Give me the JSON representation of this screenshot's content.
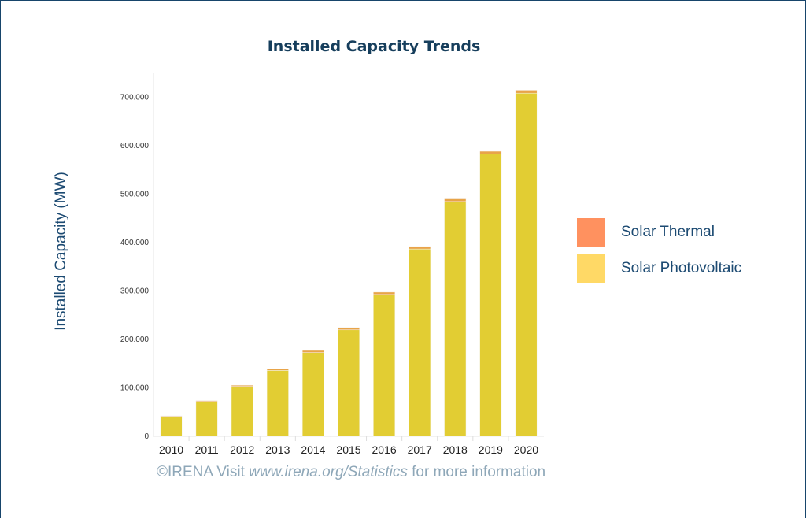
{
  "chart_data": {
    "type": "bar",
    "stacked": true,
    "title": "Installed Capacity Trends",
    "xlabel": "",
    "ylabel": "Installed Capacity (MW)",
    "categories": [
      "2010",
      "2011",
      "2012",
      "2013",
      "2014",
      "2015",
      "2016",
      "2017",
      "2018",
      "2019",
      "2020"
    ],
    "series": [
      {
        "name": "Solar Photovoltaic",
        "color": "#e2cd33",
        "values": [
          41000,
          72000,
          103000,
          136000,
          173000,
          220000,
          293000,
          387000,
          485000,
          583000,
          709000
        ]
      },
      {
        "name": "Solar Thermal",
        "color": "#e8a449",
        "values": [
          1300,
          1800,
          2500,
          3500,
          4400,
          4800,
          4900,
          5200,
          5500,
          5900,
          6200
        ]
      }
    ],
    "ylim": [
      0,
      750000
    ],
    "yticks": [
      0,
      100000,
      200000,
      300000,
      400000,
      500000,
      600000,
      700000
    ],
    "ytick_labels": [
      "0",
      "100.000",
      "200.000",
      "300.000",
      "400.000",
      "500.000",
      "600.000",
      "700.000"
    ],
    "grid": false,
    "legend_position": "right"
  },
  "legend": [
    {
      "label": "Solar Thermal",
      "color": "#ff915f"
    },
    {
      "label": "Solar Photovoltaic",
      "color": "#ffd966"
    }
  ],
  "footer": {
    "prefix": "©IRENA Visit ",
    "url": "www.irena.org/Statistics",
    "suffix": " for more information"
  }
}
